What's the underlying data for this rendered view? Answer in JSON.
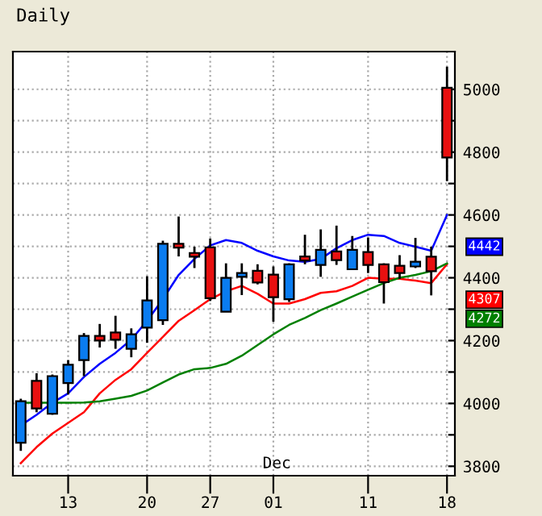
{
  "chart_data": {
    "type": "candlestick",
    "title": "Daily",
    "categories": [
      null,
      null,
      null,
      "13",
      null,
      null,
      null,
      null,
      "20",
      null,
      null,
      null,
      "27",
      null,
      null,
      null,
      "01",
      null,
      null,
      null,
      null,
      null,
      "11",
      null,
      null,
      null,
      null,
      "18"
    ],
    "ohlc": [
      [
        3875,
        4015,
        3849,
        4007
      ],
      [
        4072,
        4096,
        3972,
        3984
      ],
      [
        3967,
        4092,
        3964,
        4087
      ],
      [
        4065,
        4138,
        4029,
        4123
      ],
      [
        4138,
        4224,
        4087,
        4215
      ],
      [
        4215,
        4253,
        4178,
        4200
      ],
      [
        4226,
        4279,
        4174,
        4203
      ],
      [
        4174,
        4239,
        4147,
        4220
      ],
      [
        4241,
        4405,
        4193,
        4328
      ],
      [
        4265,
        4518,
        4250,
        4508
      ],
      [
        4508,
        4595,
        4468,
        4496
      ],
      [
        4479,
        4499,
        4431,
        4467
      ],
      [
        4497,
        4525,
        4326,
        4335
      ],
      [
        4292,
        4446,
        4292,
        4400
      ],
      [
        4403,
        4446,
        4345,
        4415
      ],
      [
        4422,
        4443,
        4379,
        4385
      ],
      [
        4410,
        4436,
        4260,
        4338
      ],
      [
        4332,
        4446,
        4323,
        4443
      ],
      [
        4468,
        4537,
        4443,
        4455
      ],
      [
        4441,
        4554,
        4403,
        4489
      ],
      [
        4484,
        4566,
        4441,
        4456
      ],
      [
        4427,
        4533,
        4427,
        4489
      ],
      [
        4482,
        4528,
        4415,
        4441
      ],
      [
        4443,
        4446,
        4318,
        4386
      ],
      [
        4438,
        4472,
        4397,
        4415
      ],
      [
        4436,
        4527,
        4431,
        4451
      ],
      [
        4467,
        4499,
        4344,
        4421
      ],
      [
        5005,
        5072,
        4708,
        4783
      ]
    ],
    "colors": [
      "#0a7cf0",
      "#e81010",
      "#0a7cf0",
      "#0a7cf0",
      "#0a7cf0",
      "#e81010",
      "#e81010",
      "#0a7cf0",
      "#0a7cf0",
      "#0a7cf0",
      "#e81010",
      "#e81010",
      "#e81010",
      "#0a7cf0",
      "#0a7cf0",
      "#e81010",
      "#e81010",
      "#0a7cf0",
      "#e81010",
      "#0a7cf0",
      "#e81010",
      "#0a7cf0",
      "#e81010",
      "#e81010",
      "#e81010",
      "#0a7cf0",
      "#e81010",
      "#e81010"
    ],
    "series": [
      {
        "type": "line",
        "color": "#0000ff",
        "values": [
          3930,
          3964,
          4002,
          4032,
          4084,
          4126,
          4161,
          4203,
          4263,
          4332,
          4409,
          4460,
          4503,
          4520,
          4511,
          4486,
          4468,
          4455,
          4451,
          4460,
          4494,
          4520,
          4537,
          4533,
          4511,
          4499,
          4486,
          4600
        ]
      },
      {
        "type": "line",
        "color": "#ff0000",
        "values": [
          3810,
          3861,
          3904,
          3938,
          3972,
          4032,
          4075,
          4109,
          4161,
          4212,
          4263,
          4297,
          4332,
          4357,
          4374,
          4349,
          4318,
          4318,
          4332,
          4352,
          4357,
          4374,
          4400,
          4397,
          4397,
          4391,
          4383,
          4443
        ]
      },
      {
        "type": "line",
        "color": "#008000",
        "values": [
          4002,
          4002,
          4002,
          4002,
          4003,
          4007,
          4015,
          4024,
          4041,
          4067,
          4092,
          4109,
          4113,
          4126,
          4152,
          4186,
          4220,
          4250,
          4272,
          4297,
          4318,
          4340,
          4362,
          4383,
          4400,
          4409,
          4421,
          4446
        ]
      }
    ],
    "annotations": [
      "4442",
      "4307",
      "4272",
      "Dec"
    ],
    "ylim": [
      3770,
      5120
    ],
    "yticks": [
      3800,
      {
        "value": 3900,
        "label": null
      },
      4000,
      {
        "value": 4100,
        "label": null
      },
      4200,
      {
        "value": 4300,
        "label": null
      },
      4400,
      {
        "value": 4500,
        "label": null
      },
      4600,
      {
        "value": 4700,
        "label": null
      },
      4800,
      {
        "value": 4900,
        "label": null
      },
      5000
    ],
    "grid": true,
    "line_style": "solid",
    "marker": "none"
  }
}
